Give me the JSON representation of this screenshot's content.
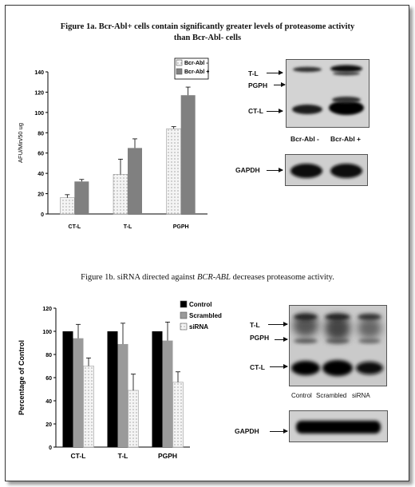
{
  "figure_1a": {
    "title_line1": "Figure 1a. Bcr-Abl+ cells contain significantly greater levels of proteasome activity",
    "title_line2": "than Bcr-Abl- cells"
  },
  "figure_1b": {
    "title_prefix": "Figure 1b. siRNA directed against ",
    "title_gene": "BCR-ABL",
    "title_suffix": " decreases proteasome activity."
  },
  "blot_1a": {
    "band_labels": [
      "T-L",
      "PGPH",
      "CT-L"
    ],
    "lane_labels": [
      "Bcr-Abl -",
      "Bcr-Abl +"
    ],
    "loading_label": "GAPDH"
  },
  "blot_1b": {
    "band_labels": [
      "T-L",
      "PGPH",
      "CT-L"
    ],
    "lane_labels": [
      "Control",
      "Scrambled",
      "siRNA"
    ],
    "loading_label": "GAPDH"
  },
  "chart_data": [
    {
      "id": "fig1a-chart",
      "type": "bar",
      "title": "",
      "xlabel": "",
      "ylabel": "AFU/Min/50 ug",
      "categories": [
        "CT-L",
        "T-L",
        "PGPH"
      ],
      "series": [
        {
          "name": "Bcr-Abl -",
          "values": [
            16,
            39,
            84
          ],
          "errors": [
            3,
            15,
            2
          ],
          "color": "#f2f2f2",
          "pattern": "dots"
        },
        {
          "name": "Bcr-Abl +",
          "values": [
            32,
            65,
            117
          ],
          "errors": [
            2,
            9,
            8
          ],
          "color": "#808080",
          "pattern": "solid"
        }
      ],
      "ylim": [
        0,
        140
      ],
      "yticks": [
        0,
        20,
        40,
        60,
        80,
        100,
        120,
        140
      ],
      "grid": false,
      "legend": "top-right"
    },
    {
      "id": "fig1b-chart",
      "type": "bar",
      "title": "",
      "xlabel": "",
      "ylabel": "Percentage of Control",
      "categories": [
        "CT-L",
        "T-L",
        "PGPH"
      ],
      "series": [
        {
          "name": "Control",
          "values": [
            100,
            100,
            100
          ],
          "errors": [
            0,
            0,
            0
          ],
          "color": "#000000",
          "pattern": "solid"
        },
        {
          "name": "Scrambled",
          "values": [
            94,
            89,
            92
          ],
          "errors": [
            12,
            18,
            16
          ],
          "color": "#9a9a9a",
          "pattern": "solid"
        },
        {
          "name": "siRNA",
          "values": [
            70,
            49,
            56
          ],
          "errors": [
            7,
            14,
            9
          ],
          "color": "#f2f2f2",
          "pattern": "dots"
        }
      ],
      "ylim": [
        0,
        120
      ],
      "yticks": [
        0,
        20,
        40,
        60,
        80,
        100,
        120
      ],
      "grid": false,
      "legend": "top-right"
    }
  ]
}
